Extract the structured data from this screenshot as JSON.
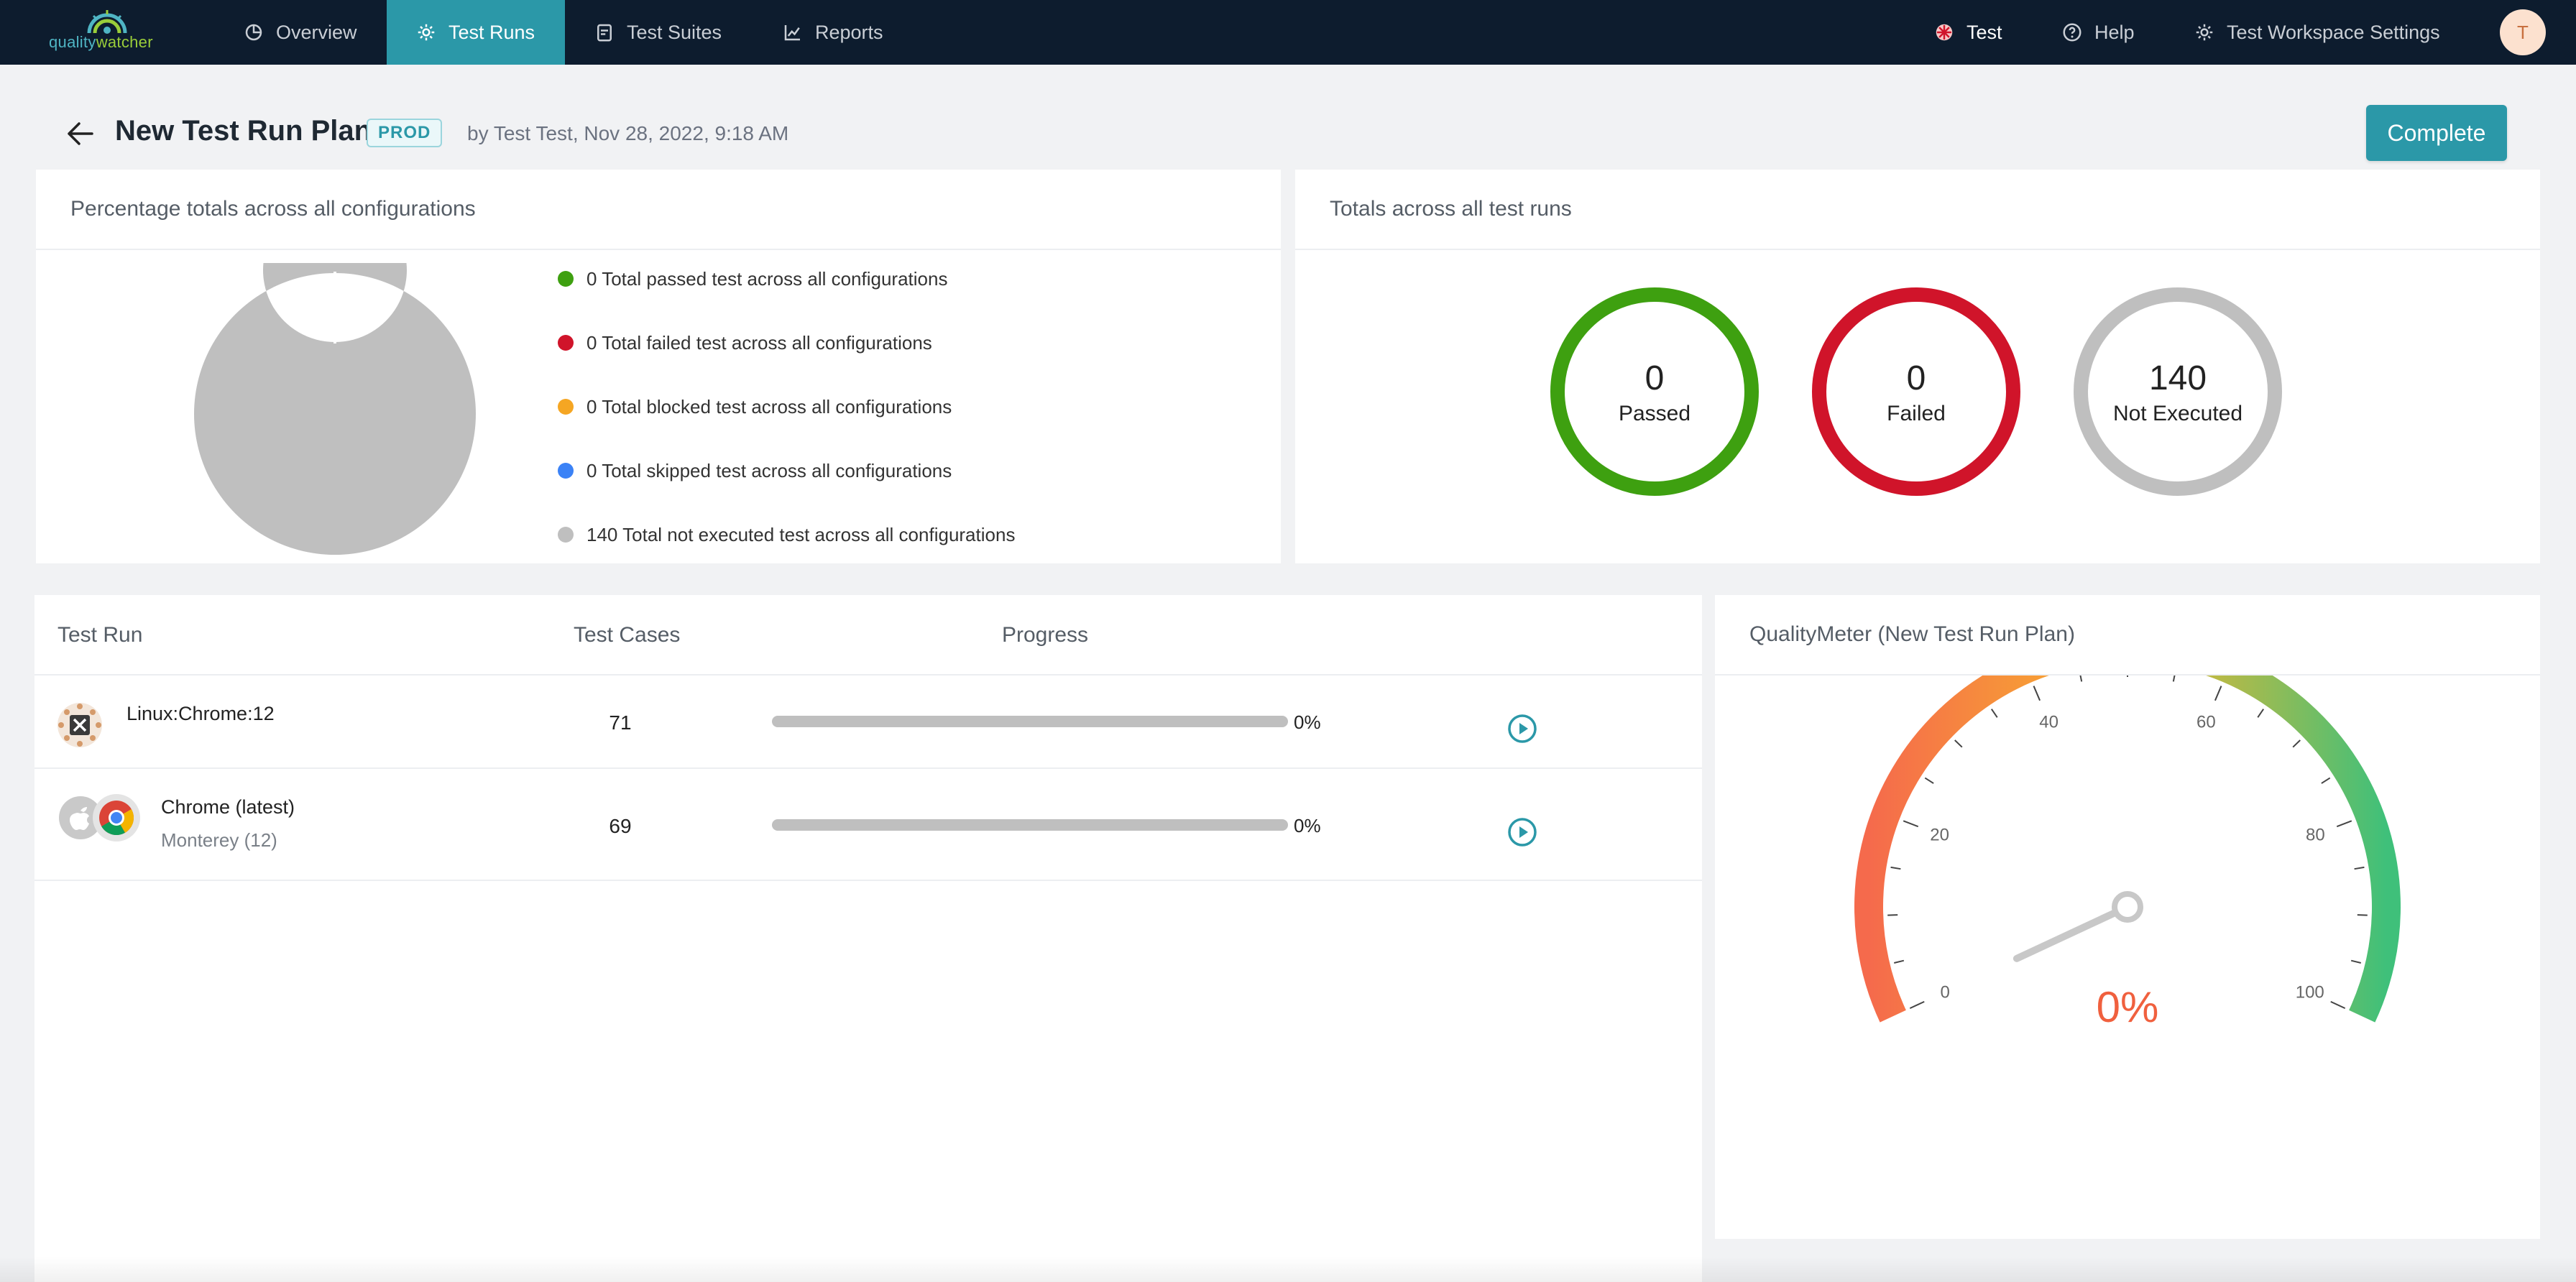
{
  "brand": {
    "name_quality": "quality",
    "name_watcher": "watcher"
  },
  "nav": {
    "tabs": [
      {
        "label": "Overview",
        "icon": "pie-chart-icon"
      },
      {
        "label": "Test Runs",
        "icon": "gear-icon",
        "active": true
      },
      {
        "label": "Test Suites",
        "icon": "clipboard-icon"
      },
      {
        "label": "Reports",
        "icon": "line-chart-icon"
      }
    ],
    "workspace_label": "Test",
    "help_label": "Help",
    "settings_label": "Test Workspace Settings",
    "avatar_initial": "T"
  },
  "header": {
    "title": "New Test Run Plan",
    "environment": "PROD",
    "meta": "by Test Test, Nov 28, 2022, 9:18 AM",
    "complete_label": "Complete"
  },
  "percentage_card": {
    "title": "Percentage totals across all configurations",
    "legend": [
      {
        "label": "0 Total passed test across all configurations",
        "color": "#3ea010"
      },
      {
        "label": "0 Total failed test across all configurations",
        "color": "#d0142a"
      },
      {
        "label": "0 Total blocked test across all configurations",
        "color": "#f5a623"
      },
      {
        "label": "0 Total skipped test across all configurations",
        "color": "#3b82f6"
      },
      {
        "label": "140 Total not executed test across all configurations",
        "color": "#bfbfbf"
      }
    ]
  },
  "chart_data": {
    "type": "pie",
    "categories": [
      "Passed",
      "Failed",
      "Blocked",
      "Skipped",
      "Not Executed"
    ],
    "values": [
      0,
      0,
      0,
      0,
      140
    ],
    "colors": [
      "#3ea010",
      "#d0142a",
      "#f5a623",
      "#3b82f6",
      "#bfbfbf"
    ],
    "donut": true
  },
  "totals_card": {
    "title": "Totals across all test runs",
    "rings": [
      {
        "count": "0",
        "label": "Passed",
        "color": "#3ea010"
      },
      {
        "count": "0",
        "label": "Failed",
        "color": "#d0142a"
      },
      {
        "count": "140",
        "label": "Not Executed",
        "color": "#bfbfbf"
      }
    ]
  },
  "runs_table": {
    "headers": {
      "run": "Test Run",
      "cases": "Test Cases",
      "progress": "Progress"
    },
    "rows": [
      {
        "name": "Linux:Chrome:12",
        "sub": "",
        "cases": "71",
        "progress": 0,
        "progress_label": "0%",
        "icons": [
          "linux-icon"
        ]
      },
      {
        "name": "Chrome (latest)",
        "sub": "Monterey (12)",
        "cases": "69",
        "progress": 0,
        "progress_label": "0%",
        "icons": [
          "apple-icon",
          "chrome-icon"
        ]
      }
    ]
  },
  "quality_meter": {
    "title": "QualityMeter (New Test Run Plan)",
    "value": 0,
    "value_label": "0%",
    "min": 0,
    "max": 100,
    "tick_labels": [
      "0",
      "20",
      "40",
      "60",
      "80",
      "100"
    ]
  }
}
